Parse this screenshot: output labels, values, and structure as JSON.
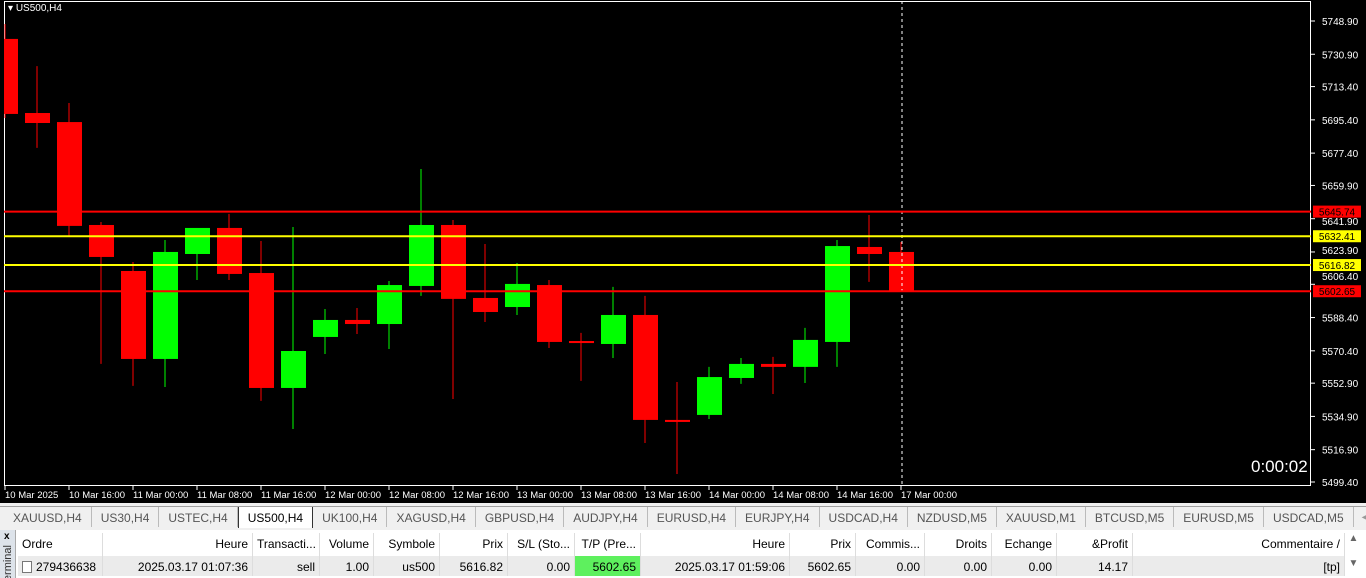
{
  "chart": {
    "symbol": "US500,H4",
    "timer": "0:00:02",
    "colors": {
      "bull": "#00ff00",
      "bear": "#ff0000",
      "tp_sl_line": "#ff0000",
      "entry_line": "#ffff00"
    },
    "price_ticks": [
      "5748.90",
      "5730.90",
      "5713.40",
      "5695.40",
      "5677.40",
      "5659.90",
      "5641.90",
      "5623.90",
      "5606.40",
      "5588.40",
      "5570.40",
      "5552.90",
      "5534.90",
      "5516.90",
      "5499.40"
    ],
    "time_labels": [
      "10 Mar 2025",
      "10 Mar 16:00",
      "11 Mar 00:00",
      "11 Mar 08:00",
      "11 Mar 16:00",
      "12 Mar 00:00",
      "12 Mar 08:00",
      "12 Mar 16:00",
      "13 Mar 00:00",
      "13 Mar 08:00",
      "13 Mar 16:00",
      "14 Mar 00:00",
      "14 Mar 08:00",
      "14 Mar 16:00",
      "17 Mar 00:00"
    ],
    "levels": [
      {
        "price": "5645.74",
        "color": "#ff0000"
      },
      {
        "price": "5632.41",
        "color": "#ffff00"
      },
      {
        "price": "5616.82",
        "color": "#ffff00"
      },
      {
        "price": "5602.65",
        "color": "#ff0000"
      }
    ],
    "candles": [
      [
        5739.2,
        5747.3,
        5696.4,
        5698.6
      ],
      [
        5699.1,
        5724.5,
        5680.2,
        5693.7
      ],
      [
        5694.2,
        5704.5,
        5632.5,
        5638.0
      ],
      [
        5638.5,
        5640.1,
        5563.3,
        5621.2
      ],
      [
        5613.6,
        5618.5,
        5551.4,
        5566.0
      ],
      [
        5566.0,
        5630.4,
        5550.8,
        5623.9
      ],
      [
        5622.8,
        5636.9,
        5608.7,
        5636.9
      ],
      [
        5636.9,
        5644.5,
        5608.7,
        5612.0
      ],
      [
        5612.5,
        5629.8,
        5543.3,
        5550.3
      ],
      [
        5550.3,
        5637.4,
        5528.1,
        5570.3
      ],
      [
        5577.9,
        5593.0,
        5568.7,
        5587.1
      ],
      [
        5587.1,
        5593.6,
        5579.5,
        5584.9
      ],
      [
        5584.9,
        5608.2,
        5571.4,
        5606.0
      ],
      [
        5605.5,
        5668.8,
        5600.1,
        5638.5
      ],
      [
        5638.5,
        5641.2,
        5544.3,
        5598.5
      ],
      [
        5599.0,
        5628.2,
        5586.0,
        5591.4
      ],
      [
        5594.1,
        5617.9,
        5589.8,
        5606.6
      ],
      [
        5606.0,
        5608.7,
        5571.9,
        5575.2
      ],
      [
        5575.7,
        5580.1,
        5554.1,
        5574.6
      ],
      [
        5574.1,
        5605.0,
        5566.5,
        5589.8
      ],
      [
        5589.8,
        5600.1,
        5520.5,
        5533.0
      ],
      [
        5533.0,
        5553.5,
        5503.7,
        5531.9
      ],
      [
        5535.7,
        5561.7,
        5533.5,
        5556.2
      ],
      [
        5555.7,
        5566.5,
        5552.5,
        5563.3
      ],
      [
        5563.3,
        5567.1,
        5547.0,
        5561.7
      ],
      [
        5561.7,
        5582.8,
        5553.0,
        5576.3
      ],
      [
        5575.2,
        5630.4,
        5561.7,
        5627.1
      ],
      [
        5626.6,
        5643.9,
        5607.7,
        5622.8
      ],
      [
        5623.9,
        5629.3,
        5602.8,
        5602.8
      ]
    ]
  },
  "tabs": [
    "XAUUSD,H4",
    "US30,H4",
    "USTEC,H4",
    "US500,H4",
    "UK100,H4",
    "XAGUSD,H4",
    "GBPUSD,H4",
    "AUDJPY,H4",
    "EURUSD,H4",
    "EURJPY,H4",
    "USDCAD,H4",
    "NZDUSD,M5",
    "XAUUSD,M1",
    "BTCUSD,M5",
    "EURUSD,M5",
    "USDCAD,M5"
  ],
  "active_tab": "US500,H4",
  "terminal": {
    "close": "x",
    "label": "Terminal",
    "headers": [
      "Ordre",
      "Heure",
      "Transacti...",
      "Volume",
      "Symbole",
      "Prix",
      "S/L (Sto...",
      "T/P (Pre...",
      "Heure",
      "Prix",
      "Commis...",
      "Droits",
      "Echange",
      "&Profit",
      "Commentaire  /"
    ],
    "row": [
      "279436638",
      "2025.03.17 01:07:36",
      "sell",
      "1.00",
      "us500",
      "5616.82",
      "0.00",
      "5602.65",
      "2025.03.17 01:59:06",
      "5602.65",
      "0.00",
      "0.00",
      "0.00",
      "14.17",
      "[tp]"
    ]
  }
}
